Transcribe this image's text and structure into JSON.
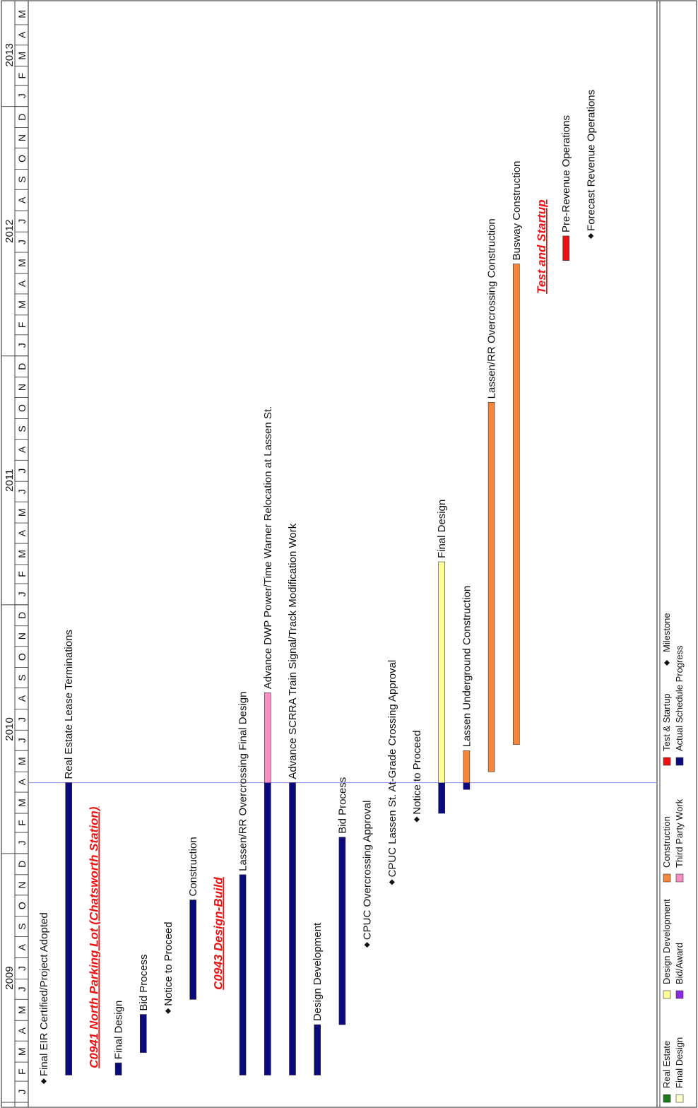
{
  "chart_data": {
    "type": "gantt",
    "title": "",
    "years": [
      {
        "label": "2009",
        "start": "2009-01"
      },
      {
        "label": "2010",
        "start": "2010-01"
      },
      {
        "label": "2011",
        "start": "2011-01"
      },
      {
        "label": "2012",
        "start": "2012-01"
      },
      {
        "label": "2013",
        "start": "2013-01"
      }
    ],
    "months": [
      "J",
      "F",
      "M",
      "A",
      "M",
      "J",
      "J",
      "A",
      "S",
      "O",
      "N",
      "D",
      "J",
      "F",
      "M",
      "A",
      "M",
      "J",
      "J",
      "A",
      "S",
      "O",
      "N",
      "D",
      "J",
      "F",
      "M",
      "A",
      "M",
      "J",
      "J",
      "A",
      "S",
      "O",
      "N",
      "D",
      "J",
      "F",
      "M",
      "A",
      "M",
      "J",
      "J",
      "A",
      "S",
      "O",
      "N",
      "D",
      "J",
      "F",
      "M",
      "A",
      "M"
    ],
    "range": [
      "2009-01-01",
      "2013-06-01"
    ],
    "status_date": "2010-04-15",
    "colors": {
      "real_estate": "#1a7a1a",
      "final_design": "#ffffcc",
      "design_development": "#ffff99",
      "bid_award": "#8a2be2",
      "construction": "#f4873a",
      "third_party": "#f78fc4",
      "test_startup": "#ee1111",
      "actual": "#0a0a7a",
      "section_heading": "#ee1111",
      "today_line": "#8c8cf5"
    },
    "rows": [
      {
        "label": "Final EIR Certified/Project Adopted",
        "kind": "milestone",
        "date": "2009-02-01"
      },
      {
        "label": "Real Estate Lease Terminations",
        "kind": "bar",
        "start": "2009-02-10",
        "end": "2010-04-15",
        "actual_end": "2010-04-15"
      },
      {
        "label": "C0941 North Parking Lot (Chatsworth Station)",
        "kind": "heading",
        "date": "2009-02-20"
      },
      {
        "label": "Final Design",
        "kind": "bar",
        "start": "2009-02-10",
        "end": "2009-02-28",
        "actual_end": "2009-02-28"
      },
      {
        "label": "Bid Process",
        "kind": "bar",
        "start": "2009-03-15",
        "end": "2009-05-10",
        "actual_end": "2009-05-10"
      },
      {
        "label": "Notice to Proceed",
        "kind": "milestone",
        "date": "2009-05-15"
      },
      {
        "label": "Construction",
        "kind": "bar",
        "start": "2009-06-01",
        "end": "2009-10-25",
        "actual_end": "2009-10-25"
      },
      {
        "label": "C0943 Design-Build",
        "kind": "heading",
        "date": "2009-06-15"
      },
      {
        "label": "Lassen/RR Overcrossing Final Design",
        "kind": "bar",
        "start": "2009-02-10",
        "end": "2009-12-01",
        "actual_end": "2009-12-01"
      },
      {
        "label": "Advance DWP Power/Time Warner Relocation at Lassen St.",
        "kind": "bar",
        "start": "2009-02-10",
        "end": "2010-08-25",
        "actual_end": "2010-04-15",
        "color_key": "third_party"
      },
      {
        "label": "Advance SCRRA Train Signal/Track Modification Work",
        "kind": "bar",
        "start": "2009-02-10",
        "end": "2010-04-15",
        "actual_end": "2010-04-15"
      },
      {
        "label": "Design Development",
        "kind": "bar",
        "start": "2009-02-10",
        "end": "2009-04-25",
        "actual_end": "2009-04-25"
      },
      {
        "label": "Bid Process",
        "kind": "bar",
        "start": "2009-04-25",
        "end": "2010-01-25",
        "actual_end": "2010-01-25"
      },
      {
        "label": "CPUC Overcrossing Approval",
        "kind": "milestone",
        "date": "2009-08-20"
      },
      {
        "label": "CPUC Lassen St. At-Grade Crossing Approval",
        "kind": "milestone",
        "date": "2009-11-20"
      },
      {
        "label": "Notice to Proceed",
        "kind": "milestone",
        "date": "2010-02-20"
      },
      {
        "label": "Final Design",
        "kind": "bar",
        "start": "2010-03-01",
        "end": "2011-03-05",
        "actual_end": "2010-04-15",
        "color_key": "design_development"
      },
      {
        "label": "Lassen Underground Construction",
        "kind": "bar",
        "start": "2010-04-05",
        "end": "2010-06-01",
        "actual_end": "2010-04-15",
        "color_key": "construction"
      },
      {
        "label": "Lassen/RR Overcrossing Construction",
        "kind": "bar",
        "start": "2010-05-01",
        "end": "2011-10-25",
        "color_key": "construction"
      },
      {
        "label": "Busway Construction",
        "kind": "bar",
        "start": "2010-06-10",
        "end": "2012-05-15",
        "color_key": "construction"
      },
      {
        "label": "Test and Startup",
        "kind": "heading",
        "date": "2012-04-01"
      },
      {
        "label": "Pre-Revenue Operations",
        "kind": "bar",
        "start": "2012-05-20",
        "end": "2012-06-25",
        "color_key": "test_startup"
      },
      {
        "label": "Forecast Revenue Operations",
        "kind": "milestone",
        "date": "2012-06-25"
      }
    ],
    "legend": [
      {
        "label": "Real Estate",
        "color_key": "real_estate",
        "symbol": "box"
      },
      {
        "label": "Final Design",
        "color_key": "final_design",
        "symbol": "box"
      },
      {
        "label": "Design Development",
        "color_key": "design_development",
        "symbol": "box"
      },
      {
        "label": "Bid/Award",
        "color_key": "bid_award",
        "symbol": "box"
      },
      {
        "label": "Construction",
        "color_key": "construction",
        "symbol": "box"
      },
      {
        "label": "Third Party Work",
        "color_key": "third_party",
        "symbol": "box"
      },
      {
        "label": "Test & Startup",
        "color_key": "test_startup",
        "symbol": "box"
      },
      {
        "label": "Actual Schedule Progress",
        "color_key": "actual",
        "symbol": "box"
      },
      {
        "label": "Milestone",
        "color_key": "",
        "symbol": "diamond"
      }
    ]
  }
}
